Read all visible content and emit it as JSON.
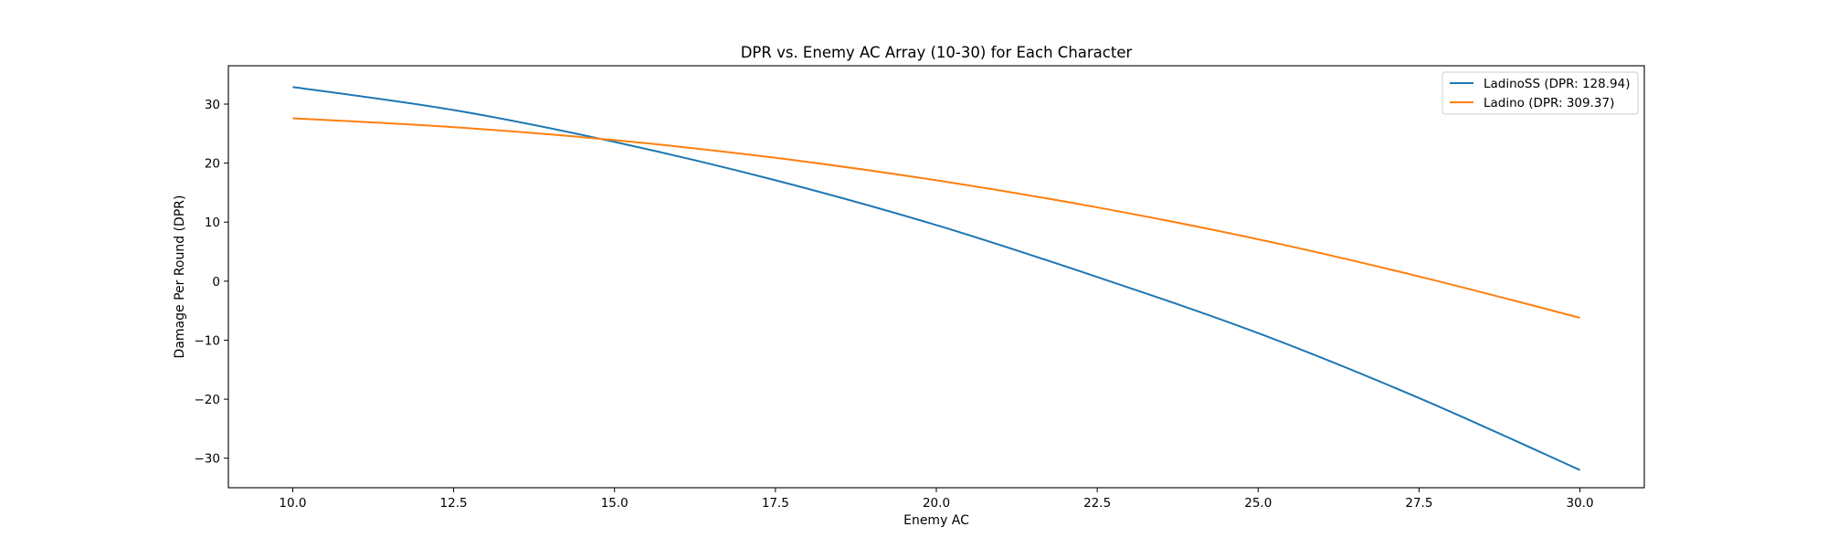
{
  "chart_data": {
    "type": "line",
    "title": "DPR vs. Enemy AC Array (10-30) for Each Character",
    "xlabel": "Enemy AC",
    "ylabel": "Damage Per Round (DPR)",
    "xlim": [
      9,
      31
    ],
    "ylim": [
      -35,
      36.5
    ],
    "xticks": [
      10.0,
      12.5,
      15.0,
      17.5,
      20.0,
      22.5,
      25.0,
      27.5,
      30.0
    ],
    "xtick_labels": [
      "10.0",
      "12.5",
      "15.0",
      "17.5",
      "20.0",
      "22.5",
      "25.0",
      "27.5",
      "30.0"
    ],
    "yticks": [
      30,
      20,
      10,
      0,
      -10,
      -20,
      -30
    ],
    "ytick_labels": [
      "30",
      "20",
      "10",
      "0",
      "−10",
      "−20",
      "−30"
    ],
    "grid": false,
    "legend_position": "top-right",
    "x": [
      10,
      12.5,
      15,
      17.5,
      20,
      22.5,
      25,
      27.5,
      30
    ],
    "series": [
      {
        "name": "LadinoSS (DPR: 128.94)",
        "color": "#1f77b4",
        "values": [
          32.9,
          29.0,
          23.6,
          17.1,
          9.5,
          0.7,
          -8.8,
          -19.8,
          -32.0
        ]
      },
      {
        "name": "Ladino (DPR: 309.37)",
        "color": "#ff7f0e",
        "values": [
          27.6,
          26.1,
          23.9,
          20.9,
          17.1,
          12.5,
          7.1,
          0.8,
          -6.2
        ]
      }
    ]
  }
}
